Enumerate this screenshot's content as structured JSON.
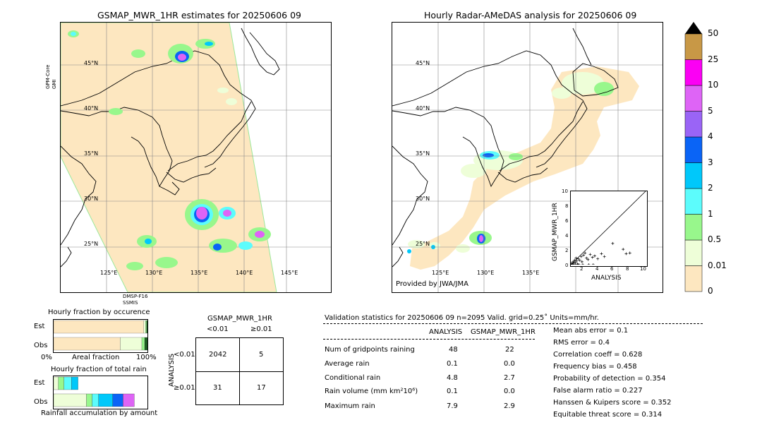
{
  "left_map": {
    "title": "GSMAP_MWR_1HR estimates for 20250606 09",
    "sensor_top": "GPM-Core\nGMI",
    "sensor_top_line1": "GPM-Core",
    "sensor_top_line2": "GMI",
    "sensor_bottom_line1": "DMSP-F16",
    "sensor_bottom_line2": "SSMIS",
    "lat_labels": [
      "45°N",
      "40°N",
      "35°N",
      "30°N",
      "25°N"
    ],
    "lon_labels": [
      "125°E",
      "130°E",
      "135°E",
      "140°E",
      "145°E"
    ]
  },
  "right_map": {
    "title": "Hourly Radar-AMeDAS analysis for 20250606 09",
    "credit": "Provided by JWA/JMA",
    "lat_labels": [
      "45°N",
      "40°N",
      "35°N",
      "30°N",
      "25°N"
    ],
    "lon_labels": [
      "125°E",
      "130°E",
      "135°E"
    ]
  },
  "colorbar": {
    "labels": [
      "0",
      "0.01",
      "0.5",
      "1",
      "2",
      "3",
      "4",
      "5",
      "10",
      "25",
      "50"
    ],
    "colors": [
      "#fde7c0",
      "#eefed8",
      "#98f78c",
      "#5cfcfc",
      "#00c8fa",
      "#0a64f6",
      "#9a64f6",
      "#de64f6",
      "#fb00f4",
      "#c89846"
    ],
    "extend_color": "#000000"
  },
  "scatter": {
    "ylabel": "GSMAP_MWR_1HR",
    "xlabel": "ANALYSIS",
    "ticks": [
      "0",
      "2",
      "4",
      "6",
      "8",
      "10"
    ]
  },
  "fraction_occurrence": {
    "title": "Hourly fraction by occurence",
    "rows": [
      "Est",
      "Obs"
    ],
    "xlabel_left": "0%",
    "xlabel_mid": "Areal fraction",
    "xlabel_right": "100%"
  },
  "fraction_total": {
    "title": "Hourly fraction of total rain",
    "rows": [
      "Est",
      "Obs"
    ],
    "xlabel": "Rainfall accumulation by amount"
  },
  "contingency": {
    "title": "GSMAP_MWR_1HR",
    "col_headers": [
      "<0.01",
      "≥0.01"
    ],
    "row_label": "ANALYSIS",
    "row_headers": [
      "<0.01",
      "≥0.01"
    ],
    "cells": [
      "2042",
      "5",
      "31",
      "17"
    ]
  },
  "validation": {
    "header": "Validation statistics for 20250606 09  n=2095 Valid. grid=0.25˚ Units=mm/hr.",
    "col_headers": [
      "ANALYSIS",
      "GSMAP_MWR_1HR"
    ],
    "rows": [
      {
        "label": "Num of gridpoints raining",
        "analysis": "48",
        "gsmap": "22"
      },
      {
        "label": "Average rain",
        "analysis": "0.1",
        "gsmap": "0.0"
      },
      {
        "label": "Conditional rain",
        "analysis": "4.8",
        "gsmap": "2.7"
      },
      {
        "label": "Rain volume (mm km²10⁶)",
        "analysis": "0.1",
        "gsmap": "0.0"
      },
      {
        "label": "Maximum rain",
        "analysis": "7.9",
        "gsmap": "2.9"
      }
    ],
    "scores": [
      "Mean abs error =    0.1",
      "RMS error =    0.4",
      "Correlation coeff =  0.628",
      "Frequency bias =  0.458",
      "Probability of detection =  0.354",
      "False alarm ratio =  0.227",
      "Hanssen & Kuipers score =  0.352",
      "Equitable threat score =  0.314"
    ]
  },
  "chart_data": [
    {
      "type": "scatter",
      "xlabel": "ANALYSIS",
      "ylabel": "GSMAP_MWR_1HR",
      "xlim": [
        0,
        10
      ],
      "ylim": [
        0,
        10
      ],
      "points": [
        [
          0.1,
          0.2
        ],
        [
          0.2,
          0.1
        ],
        [
          0.3,
          0.4
        ],
        [
          0.4,
          0.2
        ],
        [
          0.5,
          0.6
        ],
        [
          0.6,
          0.3
        ],
        [
          0.7,
          0.9
        ],
        [
          0.8,
          0.5
        ],
        [
          0.9,
          0.1
        ],
        [
          1.0,
          0.8
        ],
        [
          1.2,
          0.6
        ],
        [
          1.4,
          1.1
        ],
        [
          1.5,
          0.4
        ],
        [
          1.7,
          1.3
        ],
        [
          1.9,
          1.6
        ],
        [
          2.1,
          0.9
        ],
        [
          2.3,
          0.7
        ],
        [
          2.6,
          1.4
        ],
        [
          2.9,
          1.0
        ],
        [
          3.2,
          1.2
        ],
        [
          3.6,
          0.8
        ],
        [
          4.1,
          1.5
        ],
        [
          4.5,
          1.1
        ],
        [
          5.6,
          2.9
        ],
        [
          7.0,
          2.1
        ],
        [
          7.4,
          1.5
        ],
        [
          7.9,
          1.6
        ],
        [
          0.2,
          0.0
        ],
        [
          0.6,
          0.0
        ],
        [
          1.1,
          0.0
        ],
        [
          1.6,
          0.0
        ],
        [
          2.4,
          0.0
        ],
        [
          3.0,
          0.0
        ],
        [
          0.4,
          0.0
        ],
        [
          0.9,
          0.0
        ]
      ]
    },
    {
      "type": "bar",
      "title": "Hourly fraction by occurence",
      "categories": [
        "Est",
        "Obs"
      ],
      "series": [
        {
          "values": [
            0.96,
            0.71
          ]
        },
        {
          "values": [
            0.02,
            0.23
          ]
        },
        {
          "values": [
            0.01,
            0.03
          ]
        },
        {
          "values": [
            0.01,
            0.03
          ]
        }
      ],
      "xlim": [
        0,
        100
      ]
    },
    {
      "type": "bar",
      "title": "Hourly fraction of total rain",
      "categories": [
        "Est",
        "Obs"
      ],
      "series": [
        {
          "values": [
            0.05,
            0.35
          ]
        },
        {
          "values": [
            0.06,
            0.06
          ]
        },
        {
          "values": [
            0.08,
            0.07
          ]
        },
        {
          "values": [
            0.07,
            0.15
          ]
        },
        {
          "values": [
            0.0,
            0.11
          ]
        },
        {
          "values": [
            0.0,
            0.12
          ]
        }
      ]
    }
  ]
}
